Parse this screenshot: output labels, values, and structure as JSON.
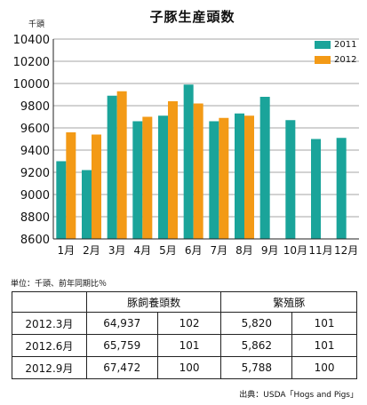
{
  "chart_data": {
    "type": "bar",
    "title": "子豚生産頭数",
    "y_unit": "千頭",
    "categories": [
      "1月",
      "2月",
      "3月",
      "4月",
      "5月",
      "6月",
      "7月",
      "8月",
      "9月",
      "10月",
      "11月",
      "12月"
    ],
    "series": [
      {
        "name": "2011",
        "color": "#1aa49a",
        "values": [
          9300,
          9220,
          9890,
          9660,
          9710,
          9990,
          9660,
          9730,
          9880,
          9670,
          9500,
          9510
        ]
      },
      {
        "name": "2012",
        "color": "#f39a16",
        "values": [
          9560,
          9540,
          9930,
          9700,
          9840,
          9820,
          9690,
          9710,
          null,
          null,
          null,
          null
        ]
      }
    ],
    "ylim": [
      8600,
      10400
    ],
    "yticks": [
      8600,
      8800,
      9000,
      9200,
      9400,
      9600,
      9800,
      10000,
      10200,
      10400
    ],
    "grid": true,
    "legend_position": "top-right"
  },
  "table": {
    "unit_note": "単位：千頭、前年同期比％",
    "headers": [
      "豚飼養頭数",
      "繁殖豚"
    ],
    "rows": [
      {
        "label": "2012.3月",
        "values": [
          "64,937",
          "102",
          "5,820",
          "101"
        ]
      },
      {
        "label": "2012.6月",
        "values": [
          "65,759",
          "101",
          "5,862",
          "101"
        ]
      },
      {
        "label": "2012.9月",
        "values": [
          "67,472",
          "100",
          "5,788",
          "100"
        ]
      }
    ]
  },
  "source": "出典：USDA「Hogs and Pigs」"
}
